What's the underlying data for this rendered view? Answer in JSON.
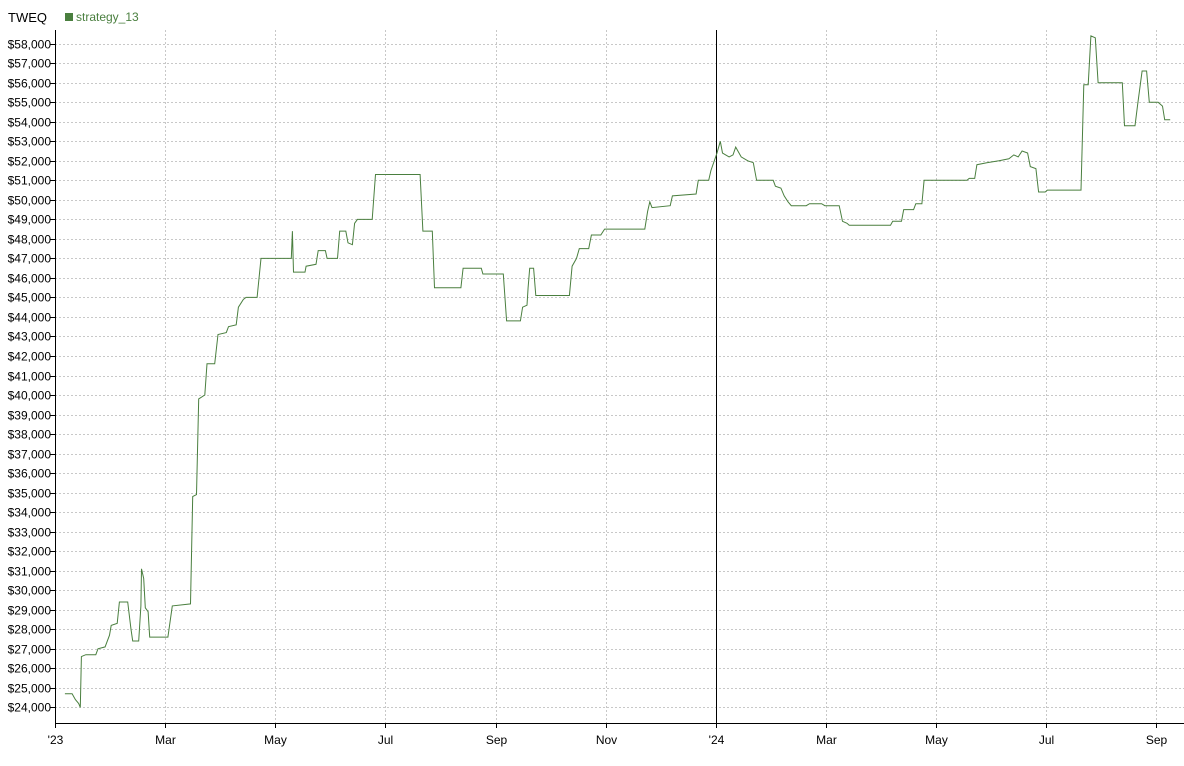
{
  "header": {
    "symbol": "TWEQ",
    "legend": [
      {
        "label": "strategy_13",
        "color": "#4a7f3f"
      }
    ]
  },
  "colors": {
    "line": "#4a7f3f",
    "grid": "#c8c8c8",
    "axis": "#000000",
    "divider": "#000000"
  },
  "chart_data": {
    "type": "line",
    "title": "TWEQ",
    "xlabel": "",
    "ylabel": "",
    "x_unit": "months since Jan 2023",
    "xlim": [
      0,
      20.5
    ],
    "ylim": [
      23200,
      58700
    ],
    "divider_x": 12,
    "x_ticks": [
      {
        "x": 0,
        "label": "'23"
      },
      {
        "x": 2,
        "label": "Mar"
      },
      {
        "x": 4,
        "label": "May"
      },
      {
        "x": 6,
        "label": "Jul"
      },
      {
        "x": 8,
        "label": "Sep"
      },
      {
        "x": 10,
        "label": "Nov"
      },
      {
        "x": 12,
        "label": "'24"
      },
      {
        "x": 14,
        "label": "Mar"
      },
      {
        "x": 16,
        "label": "May"
      },
      {
        "x": 18,
        "label": "Jul"
      },
      {
        "x": 20,
        "label": "Sep"
      }
    ],
    "y_ticks": [
      {
        "y": 24000,
        "label": "$24,000"
      },
      {
        "y": 25000,
        "label": "$25,000"
      },
      {
        "y": 26000,
        "label": "$26,000"
      },
      {
        "y": 27000,
        "label": "$27,000"
      },
      {
        "y": 28000,
        "label": "$28,000"
      },
      {
        "y": 29000,
        "label": "$29,000"
      },
      {
        "y": 30000,
        "label": "$30,000"
      },
      {
        "y": 31000,
        "label": "$31,000"
      },
      {
        "y": 32000,
        "label": "$32,000"
      },
      {
        "y": 33000,
        "label": "$33,000"
      },
      {
        "y": 34000,
        "label": "$34,000"
      },
      {
        "y": 35000,
        "label": "$35,000"
      },
      {
        "y": 36000,
        "label": "$36,000"
      },
      {
        "y": 37000,
        "label": "$37,000"
      },
      {
        "y": 38000,
        "label": "$38,000"
      },
      {
        "y": 39000,
        "label": "$39,000"
      },
      {
        "y": 40000,
        "label": "$40,000"
      },
      {
        "y": 41000,
        "label": "$41,000"
      },
      {
        "y": 42000,
        "label": "$42,000"
      },
      {
        "y": 43000,
        "label": "$43,000"
      },
      {
        "y": 44000,
        "label": "$44,000"
      },
      {
        "y": 45000,
        "label": "$45,000"
      },
      {
        "y": 46000,
        "label": "$46,000"
      },
      {
        "y": 47000,
        "label": "$47,000"
      },
      {
        "y": 48000,
        "label": "$48,000"
      },
      {
        "y": 49000,
        "label": "$49,000"
      },
      {
        "y": 50000,
        "label": "$50,000"
      },
      {
        "y": 51000,
        "label": "$51,000"
      },
      {
        "y": 52000,
        "label": "$52,000"
      },
      {
        "y": 53000,
        "label": "$53,000"
      },
      {
        "y": 54000,
        "label": "$54,000"
      },
      {
        "y": 55000,
        "label": "$55,000"
      },
      {
        "y": 56000,
        "label": "$56,000"
      },
      {
        "y": 57000,
        "label": "$57,000"
      },
      {
        "y": 58000,
        "label": "$58,000"
      }
    ],
    "series": [
      {
        "name": "strategy_13",
        "points": [
          [
            0.18,
            24700
          ],
          [
            0.31,
            24700
          ],
          [
            0.37,
            24400
          ],
          [
            0.43,
            24200
          ],
          [
            0.46,
            24000
          ],
          [
            0.48,
            26600
          ],
          [
            0.56,
            26700
          ],
          [
            0.74,
            26700
          ],
          [
            0.78,
            27000
          ],
          [
            0.91,
            27100
          ],
          [
            0.99,
            27700
          ],
          [
            1.02,
            28200
          ],
          [
            1.13,
            28300
          ],
          [
            1.17,
            29400
          ],
          [
            1.32,
            29400
          ],
          [
            1.38,
            28000
          ],
          [
            1.41,
            27400
          ],
          [
            1.52,
            27400
          ],
          [
            1.56,
            29200
          ],
          [
            1.57,
            31100
          ],
          [
            1.61,
            30600
          ],
          [
            1.64,
            29100
          ],
          [
            1.69,
            28900
          ],
          [
            1.72,
            27600
          ],
          [
            2.05,
            27600
          ],
          [
            2.13,
            29200
          ],
          [
            2.46,
            29300
          ],
          [
            2.5,
            34800
          ],
          [
            2.57,
            34900
          ],
          [
            2.61,
            39800
          ],
          [
            2.72,
            40000
          ],
          [
            2.76,
            41600
          ],
          [
            2.9,
            41600
          ],
          [
            2.96,
            43100
          ],
          [
            3.11,
            43200
          ],
          [
            3.15,
            43500
          ],
          [
            3.29,
            43600
          ],
          [
            3.33,
            44500
          ],
          [
            3.42,
            44900
          ],
          [
            3.47,
            45000
          ],
          [
            3.67,
            45000
          ],
          [
            3.74,
            47000
          ],
          [
            4.29,
            47000
          ],
          [
            4.31,
            48400
          ],
          [
            4.33,
            46300
          ],
          [
            4.54,
            46300
          ],
          [
            4.56,
            46600
          ],
          [
            4.74,
            46700
          ],
          [
            4.78,
            47400
          ],
          [
            4.91,
            47400
          ],
          [
            4.94,
            47000
          ],
          [
            5.13,
            47000
          ],
          [
            5.17,
            48400
          ],
          [
            5.28,
            48400
          ],
          [
            5.32,
            47800
          ],
          [
            5.4,
            47700
          ],
          [
            5.44,
            48800
          ],
          [
            5.49,
            49000
          ],
          [
            5.76,
            49000
          ],
          [
            5.82,
            51300
          ],
          [
            6.63,
            51300
          ],
          [
            6.68,
            48400
          ],
          [
            6.85,
            48400
          ],
          [
            6.89,
            45500
          ],
          [
            7.37,
            45500
          ],
          [
            7.41,
            46500
          ],
          [
            7.74,
            46500
          ],
          [
            7.77,
            46200
          ],
          [
            8.14,
            46200
          ],
          [
            8.2,
            43800
          ],
          [
            8.45,
            43800
          ],
          [
            8.49,
            44500
          ],
          [
            8.57,
            44600
          ],
          [
            8.59,
            45500
          ],
          [
            8.62,
            46500
          ],
          [
            8.69,
            46500
          ],
          [
            8.73,
            45100
          ],
          [
            9.34,
            45100
          ],
          [
            9.39,
            46600
          ],
          [
            9.47,
            47000
          ],
          [
            9.52,
            47500
          ],
          [
            9.69,
            47500
          ],
          [
            9.74,
            48200
          ],
          [
            9.91,
            48200
          ],
          [
            9.98,
            48500
          ],
          [
            10.71,
            48500
          ],
          [
            10.76,
            49400
          ],
          [
            10.8,
            49900
          ],
          [
            10.84,
            49600
          ],
          [
            11.17,
            49700
          ],
          [
            11.21,
            50200
          ],
          [
            11.64,
            50300
          ],
          [
            11.68,
            51000
          ],
          [
            11.87,
            51000
          ],
          [
            11.91,
            51500
          ],
          [
            12.02,
            52400
          ],
          [
            12.08,
            53000
          ],
          [
            12.12,
            52400
          ],
          [
            12.24,
            52200
          ],
          [
            12.31,
            52300
          ],
          [
            12.36,
            52700
          ],
          [
            12.46,
            52200
          ],
          [
            12.58,
            52000
          ],
          [
            12.68,
            51900
          ],
          [
            12.74,
            51000
          ],
          [
            13.04,
            51000
          ],
          [
            13.08,
            50700
          ],
          [
            13.18,
            50600
          ],
          [
            13.24,
            50200
          ],
          [
            13.31,
            49900
          ],
          [
            13.37,
            49700
          ],
          [
            13.64,
            49700
          ],
          [
            13.7,
            49800
          ],
          [
            13.92,
            49800
          ],
          [
            13.98,
            49700
          ],
          [
            14.24,
            49700
          ],
          [
            14.3,
            48900
          ],
          [
            14.38,
            48800
          ],
          [
            14.42,
            48700
          ],
          [
            15.17,
            48700
          ],
          [
            15.21,
            48900
          ],
          [
            15.37,
            48900
          ],
          [
            15.41,
            49500
          ],
          [
            15.59,
            49500
          ],
          [
            15.63,
            49800
          ],
          [
            15.74,
            49800
          ],
          [
            15.78,
            51000
          ],
          [
            16.56,
            51000
          ],
          [
            16.6,
            51100
          ],
          [
            16.7,
            51100
          ],
          [
            16.74,
            51800
          ],
          [
            16.92,
            51900
          ],
          [
            17.14,
            52000
          ],
          [
            17.32,
            52100
          ],
          [
            17.41,
            52300
          ],
          [
            17.49,
            52200
          ],
          [
            17.56,
            52500
          ],
          [
            17.66,
            52400
          ],
          [
            17.71,
            51700
          ],
          [
            17.81,
            51600
          ],
          [
            17.86,
            50400
          ],
          [
            17.98,
            50400
          ],
          [
            18.02,
            50500
          ],
          [
            18.63,
            50500
          ],
          [
            18.68,
            55900
          ],
          [
            18.76,
            55900
          ],
          [
            18.81,
            58400
          ],
          [
            18.89,
            58300
          ],
          [
            18.94,
            56000
          ],
          [
            19.38,
            56000
          ],
          [
            19.42,
            53800
          ],
          [
            19.61,
            53800
          ],
          [
            19.66,
            54900
          ],
          [
            19.74,
            56600
          ],
          [
            19.82,
            56600
          ],
          [
            19.87,
            55000
          ],
          [
            20.03,
            55000
          ],
          [
            20.11,
            54800
          ],
          [
            20.15,
            54100
          ],
          [
            20.25,
            54100
          ]
        ]
      }
    ]
  }
}
